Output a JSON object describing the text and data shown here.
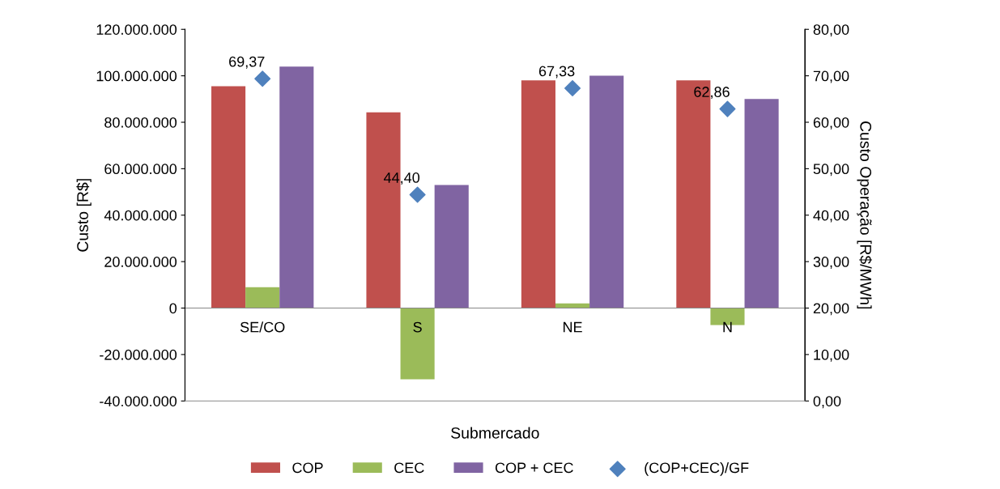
{
  "chart_data": {
    "type": "bar",
    "xlabel": "Submercado",
    "ylabel": "Custo [R$]",
    "y2label": "Custo Operação [R$/MWh]",
    "categories": [
      "SE/CO",
      "S",
      "NE",
      "N"
    ],
    "series": [
      {
        "name": "COP",
        "color": "#c0504d",
        "values": [
          95500000,
          84300000,
          98000000,
          98000000
        ]
      },
      {
        "name": "CEC",
        "color": "#9bbb59",
        "values": [
          9000000,
          -30700000,
          2000000,
          -7300000
        ]
      },
      {
        "name": "COP + CEC",
        "color": "#8064a2",
        "values": [
          104000000,
          53000000,
          100000000,
          90000000
        ]
      },
      {
        "name": "(COP+CEC)/GF",
        "type": "scatter",
        "axis": "y2",
        "color": "#4f81bd",
        "marker": "diamond",
        "values": [
          69.37,
          44.4,
          67.33,
          62.86
        ],
        "value_labels": [
          "69,37",
          "44,40",
          "67,33",
          "62,86"
        ]
      }
    ],
    "ylim": [
      -40000000,
      120000000
    ],
    "yticks": [
      {
        "value": -40000000,
        "label": "-40.000.000"
      },
      {
        "value": -20000000,
        "label": "-20.000.000"
      },
      {
        "value": 0,
        "label": "0"
      },
      {
        "value": 20000000,
        "label": "20.000.000"
      },
      {
        "value": 40000000,
        "label": "40.000.000"
      },
      {
        "value": 60000000,
        "label": "60.000.000"
      },
      {
        "value": 80000000,
        "label": "80.000.000"
      },
      {
        "value": 100000000,
        "label": "100.000.000"
      },
      {
        "value": 120000000,
        "label": "120.000.000"
      }
    ],
    "y2lim": [
      0,
      80
    ],
    "y2ticks": [
      {
        "value": 0,
        "label": "0,00"
      },
      {
        "value": 10,
        "label": "10,00"
      },
      {
        "value": 20,
        "label": "20,00"
      },
      {
        "value": 30,
        "label": "30,00"
      },
      {
        "value": 40,
        "label": "40,00"
      },
      {
        "value": 50,
        "label": "50,00"
      },
      {
        "value": 60,
        "label": "60,00"
      },
      {
        "value": 70,
        "label": "70,00"
      },
      {
        "value": 80,
        "label": "80,00"
      }
    ],
    "grid": false,
    "legend": "bottom"
  }
}
